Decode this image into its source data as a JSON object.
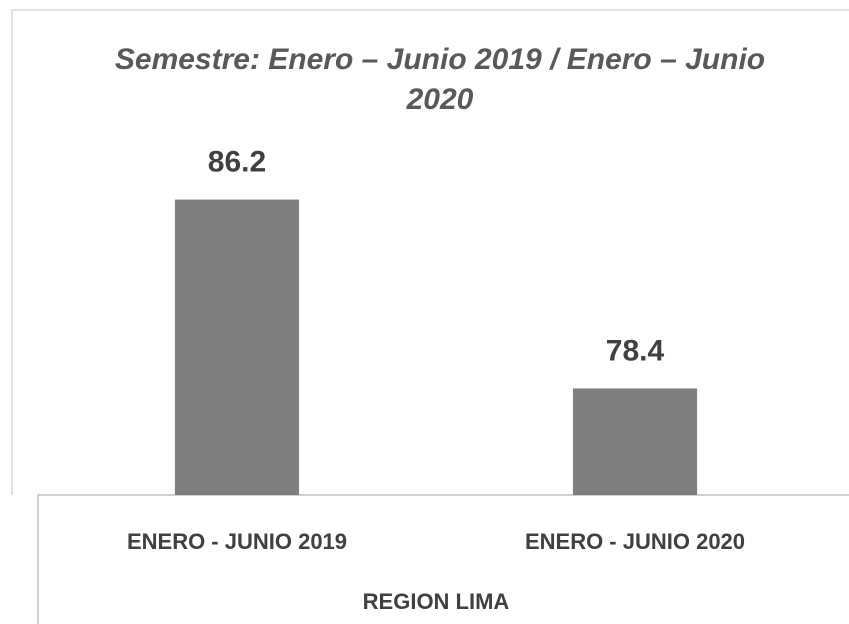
{
  "chart_data": {
    "type": "bar",
    "title": "Semestre: Enero – Junio 2019 / Enero – Junio 2020",
    "xlabel": "REGION LIMA",
    "categories": [
      "ENERO - JUNIO 2019",
      "ENERO - JUNIO 2020"
    ],
    "values": [
      86.2,
      78.4
    ],
    "color": "#7f7f7f",
    "ylim": [
      74,
      88
    ]
  }
}
